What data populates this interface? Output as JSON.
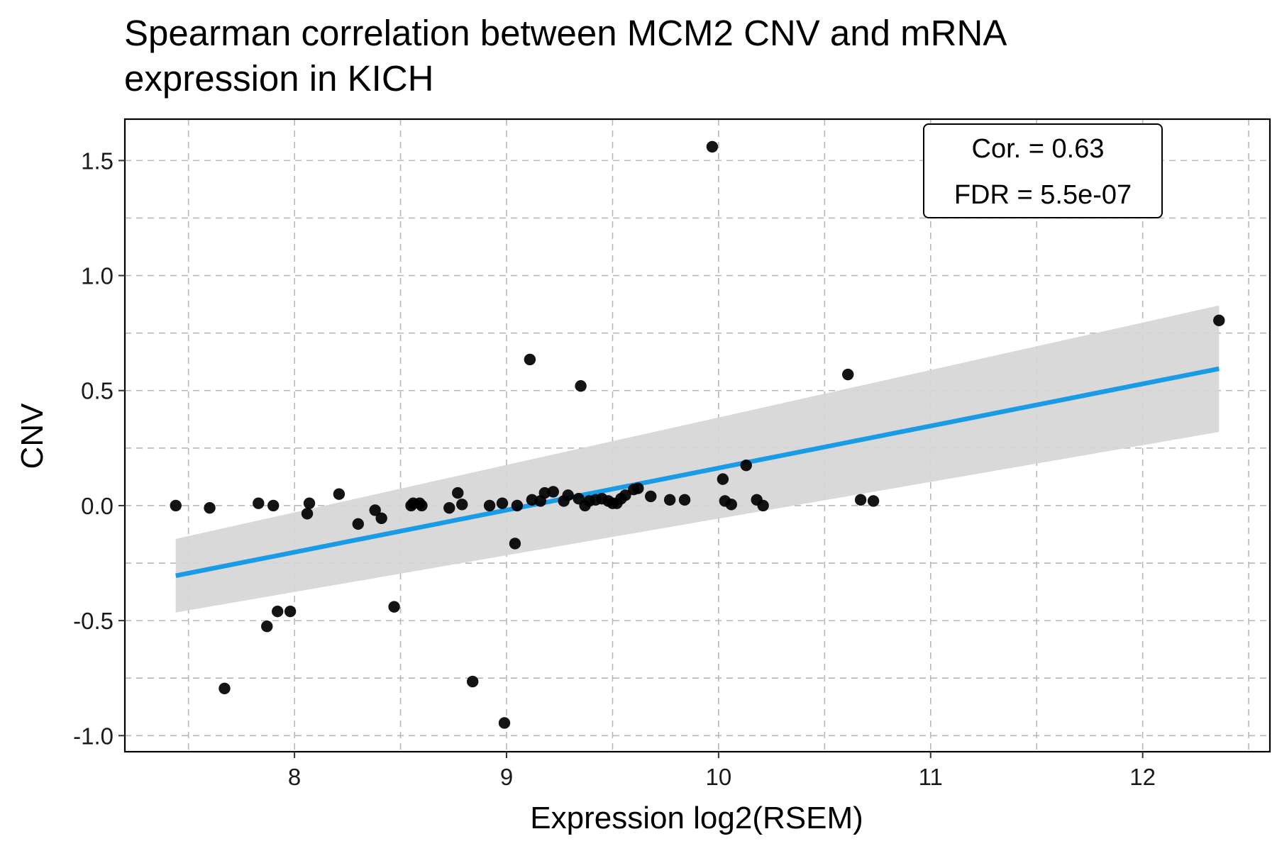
{
  "chart_data": {
    "type": "scatter",
    "title": [
      "Spearman correlation between MCM2 CNV and mRNA",
      "expression in KICH"
    ],
    "xlabel": "Expression log2(RSEM)",
    "ylabel": "CNV",
    "xlim": [
      7.2,
      12.6
    ],
    "ylim": [
      -1.07,
      1.68
    ],
    "x_ticks": [
      8,
      9,
      10,
      11,
      12
    ],
    "x_tick_labels": [
      "8",
      "9",
      "10",
      "11",
      "12"
    ],
    "y_ticks": [
      -1.0,
      -0.5,
      0.0,
      0.5,
      1.0,
      1.5
    ],
    "y_tick_labels": [
      "-1.0",
      "-0.5",
      "0.0",
      "0.5",
      "1.0",
      "1.5"
    ],
    "grid": true,
    "annotation": {
      "lines": [
        "Cor. = 0.63",
        "FDR = 5.5e-07"
      ],
      "placement": "top-right"
    },
    "fit": {
      "x": [
        7.44,
        12.36
      ],
      "y": [
        -0.305,
        0.595
      ],
      "ci_lower": [
        -0.465,
        0.32
      ],
      "ci_upper": [
        -0.145,
        0.87
      ],
      "color": "#1a9be6",
      "band_color": "#d6d6d6"
    },
    "point_color": "#000000",
    "points": [
      {
        "x": 7.44,
        "y": 0.0
      },
      {
        "x": 7.6,
        "y": -0.01
      },
      {
        "x": 7.67,
        "y": -0.795
      },
      {
        "x": 7.83,
        "y": 0.01
      },
      {
        "x": 7.87,
        "y": -0.525
      },
      {
        "x": 7.9,
        "y": 0.0
      },
      {
        "x": 7.92,
        "y": -0.46
      },
      {
        "x": 7.98,
        "y": -0.46
      },
      {
        "x": 8.06,
        "y": -0.035
      },
      {
        "x": 8.07,
        "y": 0.01
      },
      {
        "x": 8.21,
        "y": 0.05
      },
      {
        "x": 8.3,
        "y": -0.08
      },
      {
        "x": 8.38,
        "y": -0.02
      },
      {
        "x": 8.41,
        "y": -0.055
      },
      {
        "x": 8.47,
        "y": -0.44
      },
      {
        "x": 8.55,
        "y": 0.0
      },
      {
        "x": 8.56,
        "y": 0.01
      },
      {
        "x": 8.59,
        "y": 0.01
      },
      {
        "x": 8.6,
        "y": 0.0
      },
      {
        "x": 8.73,
        "y": -0.01
      },
      {
        "x": 8.77,
        "y": 0.055
      },
      {
        "x": 8.79,
        "y": 0.005
      },
      {
        "x": 8.84,
        "y": -0.765
      },
      {
        "x": 8.92,
        "y": 0.0
      },
      {
        "x": 8.98,
        "y": 0.01
      },
      {
        "x": 8.99,
        "y": -0.945
      },
      {
        "x": 9.04,
        "y": -0.165
      },
      {
        "x": 9.05,
        "y": 0.0
      },
      {
        "x": 9.11,
        "y": 0.635
      },
      {
        "x": 9.12,
        "y": 0.025
      },
      {
        "x": 9.16,
        "y": 0.02
      },
      {
        "x": 9.18,
        "y": 0.055
      },
      {
        "x": 9.22,
        "y": 0.06
      },
      {
        "x": 9.27,
        "y": 0.02
      },
      {
        "x": 9.29,
        "y": 0.045
      },
      {
        "x": 9.34,
        "y": 0.03
      },
      {
        "x": 9.35,
        "y": 0.52
      },
      {
        "x": 9.37,
        "y": 0.0
      },
      {
        "x": 9.39,
        "y": 0.02
      },
      {
        "x": 9.42,
        "y": 0.025
      },
      {
        "x": 9.45,
        "y": 0.03
      },
      {
        "x": 9.48,
        "y": 0.02
      },
      {
        "x": 9.5,
        "y": 0.01
      },
      {
        "x": 9.52,
        "y": 0.01
      },
      {
        "x": 9.54,
        "y": 0.03
      },
      {
        "x": 9.56,
        "y": 0.045
      },
      {
        "x": 9.6,
        "y": 0.07
      },
      {
        "x": 9.62,
        "y": 0.075
      },
      {
        "x": 9.68,
        "y": 0.04
      },
      {
        "x": 9.77,
        "y": 0.025
      },
      {
        "x": 9.84,
        "y": 0.025
      },
      {
        "x": 9.97,
        "y": 1.56
      },
      {
        "x": 10.02,
        "y": 0.115
      },
      {
        "x": 10.03,
        "y": 0.02
      },
      {
        "x": 10.06,
        "y": 0.005
      },
      {
        "x": 10.13,
        "y": 0.175
      },
      {
        "x": 10.18,
        "y": 0.025
      },
      {
        "x": 10.21,
        "y": 0.0
      },
      {
        "x": 10.61,
        "y": 0.57
      },
      {
        "x": 10.67,
        "y": 0.025
      },
      {
        "x": 10.73,
        "y": 0.02
      },
      {
        "x": 12.36,
        "y": 0.805
      }
    ]
  }
}
